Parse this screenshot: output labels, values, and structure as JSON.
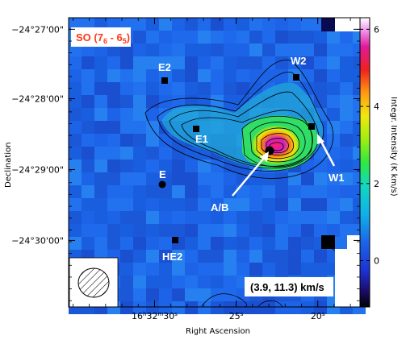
{
  "chart_data": {
    "type": "heatmap",
    "title": "SO (7",
    "title_sub1": "6",
    "title_mid": " - 6",
    "title_sub2": "5",
    "title_end": ")",
    "title_color": "#ff3a1a",
    "xlabel": "Right Ascension",
    "ylabel": "Declination",
    "colorbar_label": "Integr. Intensity (K km/s)",
    "velocity_range": "(3.9, 11.3) km/s",
    "x_ticks": [
      {
        "main": "16",
        "sup1": "h",
        "mid1": "32",
        "sup2": "m",
        "mid2": "30",
        "sup3": "s",
        "frac": 0.295
      },
      {
        "main": "25",
        "sup1": "s",
        "frac": 0.575
      },
      {
        "main": "20",
        "sup1": "s",
        "frac": 0.855
      }
    ],
    "y_ticks": [
      {
        "label": "−24°27'00\"",
        "frac": 0.04
      },
      {
        "label": "−24°28'00\"",
        "frac": 0.28
      },
      {
        "label": "−24°29'00\"",
        "frac": 0.525
      },
      {
        "label": "−24°30'00\"",
        "frac": 0.77
      }
    ],
    "colorbar_ticks": [
      6,
      4,
      2,
      0
    ],
    "colorbar_range": [
      -1.2,
      6.3
    ],
    "sources": [
      {
        "name": "E2",
        "marker": "square"
      },
      {
        "name": "W2",
        "marker": "square"
      },
      {
        "name": "E1",
        "marker": "square"
      },
      {
        "name": "W1",
        "marker": "square"
      },
      {
        "name": "E",
        "marker": "circle"
      },
      {
        "name": "A/B",
        "marker": "circle"
      },
      {
        "name": "HE2",
        "marker": "square"
      }
    ],
    "colors": {
      "background": "#1c63e8",
      "peak": "#d21ec8",
      "contour": "#000000"
    }
  }
}
